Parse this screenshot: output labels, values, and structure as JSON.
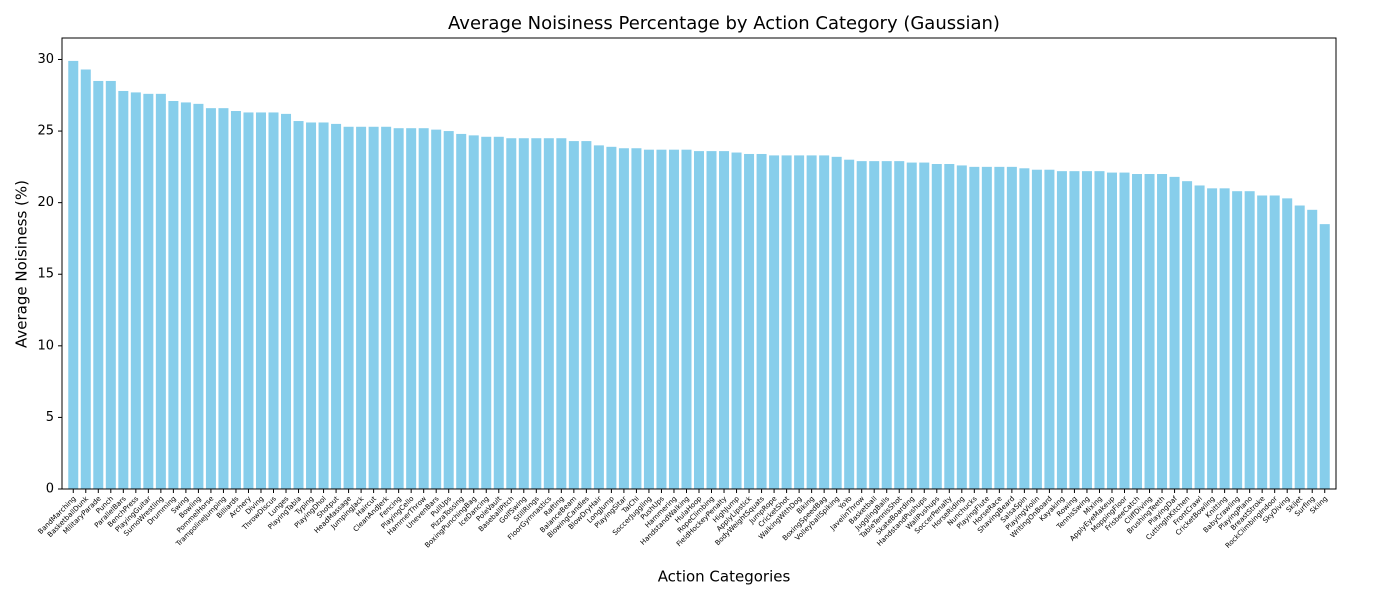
{
  "chart_data": {
    "type": "bar",
    "title": "Average Noisiness Percentage by Action Category (Gaussian)",
    "x_label": "Action Categories",
    "y_label": "Average Noisiness (%)",
    "color": "#87ceeb",
    "categories": [
      "BandMarching",
      "BasketballDunk",
      "MilitaryParade",
      "Punch",
      "ParallelBars",
      "BenchPress",
      "PlayingGuitar",
      "SumoWrestling",
      "Drumming",
      "Swing",
      "Bowling",
      "PommelHorse",
      "TrampolineJumping",
      "Billiards",
      "Archery",
      "Diving",
      "ThrowDiscus",
      "Lunges",
      "PlayingTabla",
      "Typing",
      "PlayingDhol",
      "Shotput",
      "HeadMassage",
      "JumpingJack",
      "Haircut",
      "CleanAndJerk",
      "Fencing",
      "PlayingCello",
      "HammerThrow",
      "UnevenBars",
      "PullUps",
      "PizzaTossing",
      "BoxingPunchingBag",
      "IceDancing",
      "PoleVault",
      "BaseballPitch",
      "GolfSwing",
      "StillRings",
      "FloorGymnastics",
      "Rafting",
      "BalanceBeam",
      "BlowingCandles",
      "BlowDryHair",
      "LongJump",
      "PlayingSitar",
      "TaiChi",
      "SoccerJuggling",
      "PushUps",
      "Hammering",
      "HandstandWalking",
      "HulaHoop",
      "RopeClimbing",
      "FieldHockeyPenalty",
      "HighJump",
      "ApplyLipstick",
      "BodyWeightSquats",
      "JumpRope",
      "CricketShot",
      "WalkingWithDog",
      "Biking",
      "BoxingSpeedBag",
      "VolleyballSpiking",
      "YoYo",
      "JavelinThrow",
      "Basketball",
      "JugglingBalls",
      "TableTennisShot",
      "SkateBoarding",
      "HandstandPushups",
      "WallPushups",
      "SoccerPenalty",
      "HorseRiding",
      "Nunchucks",
      "PlayingFlute",
      "HorseRace",
      "ShavingBeard",
      "SalsaSpin",
      "PlayingViolin",
      "WritingOnBoard",
      "Kayaking",
      "Rowing",
      "TennisSwing",
      "Mixing",
      "ApplyEyeMakeup",
      "MoppingFloor",
      "FrisbeeCatch",
      "CliffDiving",
      "BrushingTeeth",
      "PlayingDaf",
      "CuttingInKitchen",
      "FrontCrawl",
      "CricketBowling",
      "Knitting",
      "BabyCrawling",
      "PlayingPiano",
      "BreastStroke",
      "RockClimbingIndoor",
      "SkyDiving",
      "Skijet",
      "Surfing",
      "Skiing"
    ],
    "values": [
      29.9,
      29.3,
      28.5,
      28.5,
      27.8,
      27.7,
      27.6,
      27.6,
      27.1,
      27.0,
      26.9,
      26.6,
      26.6,
      26.4,
      26.3,
      26.3,
      26.3,
      26.2,
      25.7,
      25.6,
      25.6,
      25.5,
      25.3,
      25.3,
      25.3,
      25.3,
      25.2,
      25.2,
      25.2,
      25.1,
      25.0,
      24.8,
      24.7,
      24.6,
      24.6,
      24.5,
      24.5,
      24.5,
      24.5,
      24.5,
      24.3,
      24.3,
      24.0,
      23.9,
      23.8,
      23.8,
      23.7,
      23.7,
      23.7,
      23.7,
      23.6,
      23.6,
      23.6,
      23.5,
      23.4,
      23.4,
      23.3,
      23.3,
      23.3,
      23.3,
      23.3,
      23.2,
      23.0,
      22.9,
      22.9,
      22.9,
      22.9,
      22.8,
      22.8,
      22.7,
      22.7,
      22.6,
      22.5,
      22.5,
      22.5,
      22.5,
      22.4,
      22.3,
      22.3,
      22.2,
      22.2,
      22.2,
      22.2,
      22.1,
      22.1,
      22.0,
      22.0,
      22.0,
      21.8,
      21.5,
      21.2,
      21.0,
      21.0,
      20.8,
      20.8,
      20.5,
      20.5,
      20.3,
      19.8,
      19.5,
      18.5
    ],
    "ylim": [
      0,
      31.5
    ],
    "yticks": [
      0,
      5,
      10,
      15,
      20,
      25,
      30
    ]
  }
}
